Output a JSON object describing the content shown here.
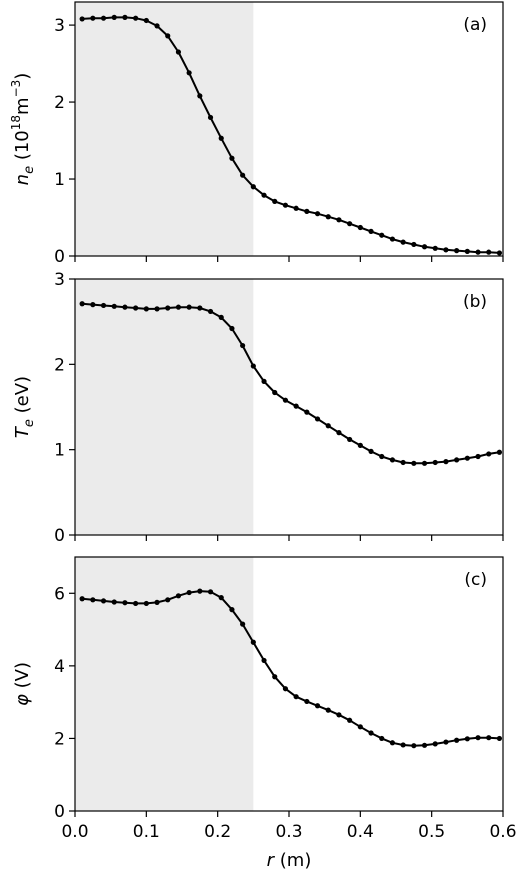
{
  "chart_data": [
    {
      "type": "line",
      "panel_label": "(a)",
      "ylabel_symbol": "n",
      "ylabel_subscript": "e",
      "ylabel_unit_pre": " (10",
      "ylabel_exp1": "18",
      "ylabel_unit_mid": "m",
      "ylabel_exp2": "−3",
      "ylabel_unit_post": ")",
      "ylim": [
        0,
        3.3
      ],
      "yticks": [
        0,
        1,
        2,
        3
      ],
      "xlim": [
        0,
        0.6
      ],
      "shaded_x": [
        0,
        0.25
      ],
      "x": [
        0.01,
        0.025,
        0.04,
        0.055,
        0.07,
        0.085,
        0.1,
        0.115,
        0.13,
        0.145,
        0.16,
        0.175,
        0.19,
        0.205,
        0.22,
        0.235,
        0.25,
        0.265,
        0.28,
        0.295,
        0.31,
        0.325,
        0.34,
        0.355,
        0.37,
        0.385,
        0.4,
        0.415,
        0.43,
        0.445,
        0.46,
        0.475,
        0.49,
        0.505,
        0.52,
        0.535,
        0.55,
        0.565,
        0.58,
        0.595
      ],
      "y": [
        3.08,
        3.09,
        3.09,
        3.1,
        3.1,
        3.09,
        3.06,
        2.99,
        2.86,
        2.65,
        2.38,
        2.08,
        1.8,
        1.53,
        1.27,
        1.05,
        0.9,
        0.79,
        0.71,
        0.66,
        0.62,
        0.58,
        0.55,
        0.51,
        0.47,
        0.42,
        0.37,
        0.32,
        0.27,
        0.22,
        0.18,
        0.15,
        0.12,
        0.1,
        0.08,
        0.07,
        0.06,
        0.05,
        0.05,
        0.04
      ]
    },
    {
      "type": "line",
      "panel_label": "(b)",
      "ylabel_symbol": "T",
      "ylabel_subscript": "e",
      "ylabel_unit": " (eV)",
      "ylim": [
        0,
        3
      ],
      "yticks": [
        0,
        1,
        2,
        3
      ],
      "xlim": [
        0,
        0.6
      ],
      "shaded_x": [
        0,
        0.25
      ],
      "x": [
        0.01,
        0.025,
        0.04,
        0.055,
        0.07,
        0.085,
        0.1,
        0.115,
        0.13,
        0.145,
        0.16,
        0.175,
        0.19,
        0.205,
        0.22,
        0.235,
        0.25,
        0.265,
        0.28,
        0.295,
        0.31,
        0.325,
        0.34,
        0.355,
        0.37,
        0.385,
        0.4,
        0.415,
        0.43,
        0.445,
        0.46,
        0.475,
        0.49,
        0.505,
        0.52,
        0.535,
        0.55,
        0.565,
        0.58,
        0.595
      ],
      "y": [
        2.71,
        2.7,
        2.69,
        2.68,
        2.67,
        2.66,
        2.65,
        2.65,
        2.66,
        2.67,
        2.67,
        2.66,
        2.62,
        2.55,
        2.42,
        2.22,
        1.98,
        1.8,
        1.67,
        1.58,
        1.51,
        1.44,
        1.36,
        1.28,
        1.2,
        1.12,
        1.05,
        0.98,
        0.92,
        0.88,
        0.85,
        0.84,
        0.84,
        0.85,
        0.86,
        0.88,
        0.9,
        0.92,
        0.95,
        0.97
      ]
    },
    {
      "type": "line",
      "panel_label": "(c)",
      "ylabel_symbol": "φ",
      "ylabel_unit": " (V)",
      "ylim": [
        0,
        7
      ],
      "yticks": [
        0,
        2,
        4,
        6
      ],
      "xlim": [
        0,
        0.6
      ],
      "xticks": [
        0.0,
        0.1,
        0.2,
        0.3,
        0.4,
        0.5,
        0.6
      ],
      "xlabel_symbol": "r",
      "xlabel_unit": " (m)",
      "shaded_x": [
        0,
        0.25
      ],
      "x": [
        0.01,
        0.025,
        0.04,
        0.055,
        0.07,
        0.085,
        0.1,
        0.115,
        0.13,
        0.145,
        0.16,
        0.175,
        0.19,
        0.205,
        0.22,
        0.235,
        0.25,
        0.265,
        0.28,
        0.295,
        0.31,
        0.325,
        0.34,
        0.355,
        0.37,
        0.385,
        0.4,
        0.415,
        0.43,
        0.445,
        0.46,
        0.475,
        0.49,
        0.505,
        0.52,
        0.535,
        0.55,
        0.565,
        0.58,
        0.595
      ],
      "y": [
        5.85,
        5.82,
        5.79,
        5.76,
        5.74,
        5.72,
        5.72,
        5.75,
        5.82,
        5.93,
        6.02,
        6.06,
        6.04,
        5.88,
        5.55,
        5.15,
        4.65,
        4.15,
        3.7,
        3.37,
        3.15,
        3.02,
        2.9,
        2.78,
        2.65,
        2.5,
        2.32,
        2.15,
        2.0,
        1.88,
        1.82,
        1.8,
        1.81,
        1.85,
        1.9,
        1.95,
        1.99,
        2.02,
        2.02,
        2.0
      ]
    }
  ]
}
